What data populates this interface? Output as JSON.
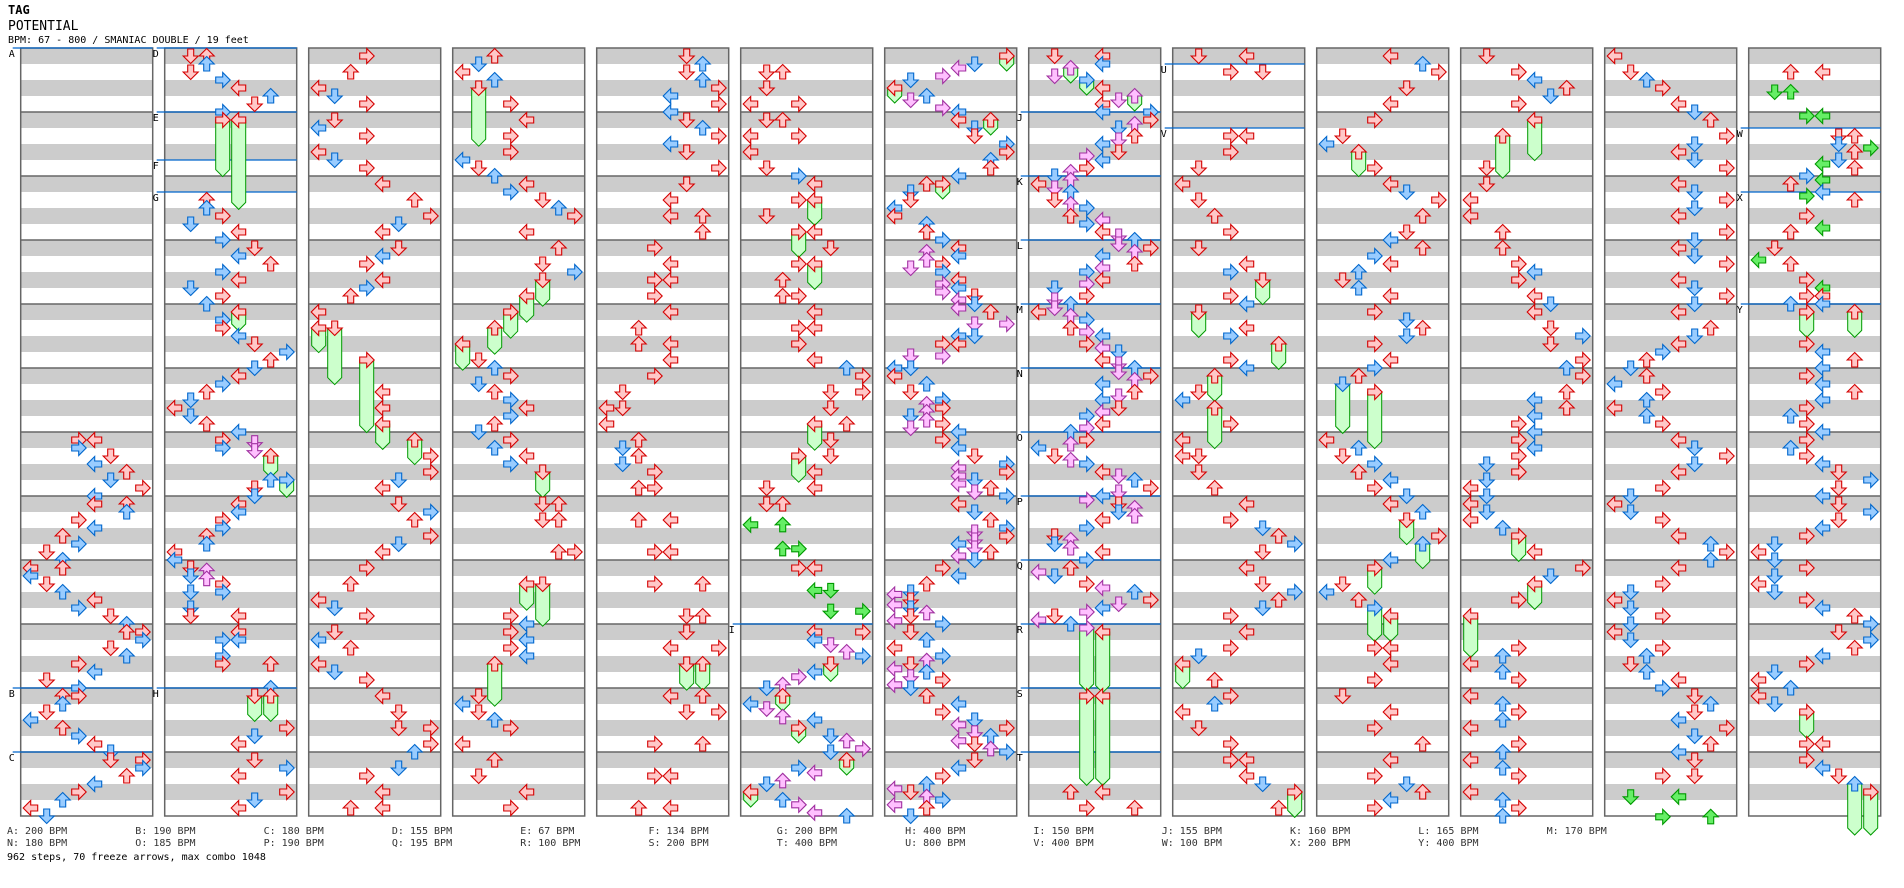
{
  "header": {
    "tag": "TAG",
    "title": "POTENTIAL",
    "info": "BPM: 67 - 800 / SMANIAC DOUBLE / 19 feet"
  },
  "colors": {
    "quarter": {
      "fill": "#ffc8c8",
      "stroke": "#d40000"
    },
    "eighth": {
      "fill": "#99ccff",
      "stroke": "#0066cc"
    },
    "twelfth": {
      "fill": "#ffc0ff",
      "stroke": "#a030a0"
    },
    "sixteenth": {
      "fill": "#66ee66",
      "stroke": "#009900"
    },
    "freeze": {
      "fill": "#ccffcc",
      "stroke": "#009900"
    },
    "stripe": "#cccccc",
    "measure_line": "#666666",
    "bpm_line": "#0066cc"
  },
  "chart_data": {
    "type": "step-chart",
    "lanes": [
      "left",
      "down",
      "up",
      "right",
      "left",
      "down",
      "up",
      "right"
    ],
    "measures_per_column": 12,
    "rows_per_measure": 8,
    "color_codes": {
      "r": "quarter",
      "b": "eighth",
      "p": "twelfth",
      "g": "sixteenth"
    },
    "columns": [
      {
        "labels": [
          [
            "A",
            0
          ],
          [
            "B",
            80
          ],
          [
            "C",
            88
          ]
        ],
        "freezes": "",
        "notes": "48:3r 48:4r 49:3b 50:5r 51:4b 52:6r 53:5b 54:7r 55:4b 56:4r 56:6r 57:6b 58:3r 59:4b 60:2r 61:3b 62:1r 63:2b 64:0r 64:2r 65:0b 66:1r 67:2b 68:4r 69:3b 70:5r 71:6b 72:6r 72:7r 73:7b 74:5r 75:6b 76:3r 77:4b 78:1r 79:3b 80:2r 80:3r 81:2b 82:1r 83:0b 84:2r 85:3b 86:4r 87:5b 88:5r 88:7r 89:7b 90:6r 91:4b 92:3r 93:2b 94:0r 95:1b"
      },
      {
        "labels": [
          [
            "D",
            0
          ],
          [
            "E",
            8
          ],
          [
            "F",
            14
          ],
          [
            "G",
            18
          ],
          [
            "H",
            80
          ]
        ],
        "freezes": "8:3:14.7 8:4:18.8 32:4:34 50:6:52.3 53:7:54.8 80:5:82.8 80:6:82.8",
        "notes": "0:1r 0:2r 1:2b 2:1r 3:3b 4:4r 5:6b 6:5r 7:3b 8:3r 8:4r 18:2r 19:2b 20:3r 21:1b 22:4r 23:3b 24:5r 25:4b 26:6r 27:3b 28:4r 29:1b 30:3r 31:2b 32:4r 33:3b 34:3r 35:4b 36:5r 37:7b 38:6r 39:5b 40:4r 41:3b 42:2r 43:1b 44:0r 45:1b 46:2r 47:4b 48:3r 49:3b 48.33:5p 49.33:5p 50:6r 53:6b 53:7b 54:5r 55:5b 56:4r 57:4b 58:3r 59:3b 60:2r 61:2b 62:0r 63:0b 64:1r 65:1b 64.33:2p 65.33:2p 66:3r 67:3b 67:1b 69:1b 70:1r 70:4r 72:4r 73:3b 73:4b 75:3b 76:3r 76:6r 79:6b 80:5r 80:6r 84:7r 85:5b 86:4r 88:5r 89:7b 90:4r 92:7r 93:5b 94:4r"
      },
      {
        "labels": [],
        "freezes": "34:0:36.7 34:1:40.7 38:3:46.7 46:4:48.8 48:6:50.7",
        "notes": "0:3r 2:2r 4:0r 5:1b 6:3r 8:1r 9:0b 10:3r 12:0r 13:1b 14:3r 16:4r 18:6r 20:7r 21:5b 22:4r 24:5r 25:4b 26:3r 28:4r 29:3b 30:2r 32:0r 34:0r 34:1r 38:3r 42:4r 44:4r 46:4r 48:6r 50:7r 52:7r 53:5b 54:4r 56:5r 57:7b 58:6r 60:7r 61:5b 62:4r 64:3r 66:2r 68:0r 69:1b 70:3r 72:1r 73:0b 74:2r 76:0r 77:1b 78:3r 80:4r 82:5r 84:5r 84:7r 86:7r 87:6b 89:5b 90:3r 92:4r 94:2r 94:4r"
      },
      {
        "labels": [],
        "freezes": "4:1:10.9 28:5:30.9 30:4:32.9 32:3:34.9 34:2:36.9 36:0:38.9 52:5:54.8 66:4:68.9 66:5:70.9 76:2:80.9",
        "notes": "0:2r 1:1b 2:0r 3:2b 4:1r 6:3r 8:4r 10:3r 12:3r 13:0b 14:1r 15:2b 16:4r 17:3b 18:5r 19:6b 20:7r 22:4r 24:6r 26:5r 27:7b 28:5r 30:4r 32:3r 34:2r 36:0r 38:1r 39:2b 40:3r 41:1b 42:2r 43:3b 44:4r 45:3b 46:2r 47:1b 48:3r 49:2b 50:4r 51:3b 52:5r 56:5r 56:6r 58:5r 58:6r 62:6r 62:7r 66:4r 66:5r 70:3r 71:4b 72:3r 73:4b 74:3r 75:4b 76:2r 80:1r 81:0b 82:1r 83:2b 84:3r 86:0r 88:2r 90:1r 92:4r 94:3r"
      },
      {
        "labels": [],
        "freezes": "76:5:78.9 76:6:78.9",
        "notes": "0:5r 1:6b 2:5r 3:6b 4:7r 5:4b 6:7r 7:4b 8:5r 9:6b 10:7r 11:4b 12:5r 14:7r 16:5r 18:4r 20:4r 20:6r 22:6r 24:3r 26:4r 28:3r 28:4r 30:3r 32:4r 34:2r 36:2r 36:4r 38:4r 40:3r 42:1r 44:1r 44:0r 46:0r 48:2r 49:1b 50:2r 51:1b 52:3r 54:2r 54:3r 58:2r 58:4r 62:3r 62:4r 66:3r 66:6r 70:5r 70:6r 72:5r 74:4r 74:7r 76:5r 76:6r 80:4r 80:6r 82:5r 82:7r 86:3r 86:6r 90:3r 90:4r 94:2r 94:4r"
      },
      {
        "labels": [
          [
            "I",
            72
          ]
        ],
        "freezes": "18:4:20.8 22:3:24.8 26:4:28.8 46:4:48.9 50:3:52.9 76:5:77.8 80:2:81.5 84:3:85.5 88:6:89.5 92:0:93.5",
        "notes": "2:1r 2:2r 4:1r 6:0r 6:3r 8:1r 8:2r 10:0r 10:3r 12:0r 14:1r 15:3b 16:4r 18:3r 18:4r 20:1r 22:3r 22:4r 24:5r 26:3r 26:4r 28:2r 30:2r 30:3r 32:4r 34:3r 34:4r 36:3r 38:4r 39:6b 40:7r 42:5r 42:7r 44:5r 46:6r 46:4r 48:5r 50:5r 50:3r 52:4r 54:4r 54:1r 56:1r 56:2r 58.6:0g 58.6:2g 61.6:2g 61.6:3g 64:3r 64:4r 66.8:4g 66.8:5g 69.4:5g 69.4:7g 72:4r 72:7r 73:4b 73.6:5p 74.5:6p 75:7b 76:5r 77:4b 77.6:3p 78.6:2p 79:1b 80:2r 81:0b 81.6:1p 82.6:2p 83:4b 84:3r 85:5b 85.6:6p 86.6:7p 87:5b 88:6r 89:3b 89.6:4p 90.6:2p 91:1b 92:0r 93:2b 93.6:3p 94.6:4p 95:6b"
      },
      {
        "labels": [],
        "freezes": "0:7:1.5 4:0:5.5 8:6:9.5 16:3:17.5",
        "notes": "0:7r 1:5b 1.5:4p 2.5:3p 3:1b 4:0r 5:2b 5.5:1p 6.5:3p 7:4b 8:4r 8:6r 9:5b 10:5r 11:7b 12:7r 13:6b 14:6r 15:4b 16:2r 16:3r 17:1b 18:1r 19:0b 20:0r 21:2b 22:2r 23:3b 24:4r 25:4b 24.5:2p 25.5:2p 26.5:1p 26:3r 27:3b 28.5:3p 29.5:3p 28:4r 29:4b 30.5:4p 31.5:4p 30:5r 31:5b 32:6r 33.5:7p 33.5:5p 35:5b 35:4b 36:3r 36:4r 37.5:1p 37.5:3p 39:1b 39:0b 40:0r 41:2b 42:1r 43:3b 44:3r 43.5:2p 44.5:2p 45:1b 46.5:1p 45.5:2p 46:3r 47:4b 48:3r 49:4b 50:5r 51:7b 52:7r 51.5:4p 52.5:4p 53.5:4p 53:5b 54.5:5p 54:6r 55:7b 56:4r 57:5b 58:6r 59:7b 60:7r 59.5:5p 60.5:5p 61.5:5p 61:4b 62.5:4p 63:5b 62:6r 64:3r 65:4b 66:2r 67.3:0p 68.6:0p 67:1b 68:1r 69:1b 70:1r 69.6:2p 70.6:0p 71:3b 72:1r 73:2b 74:0r 75:3b 76:1r 75.6:2p 76.6:0p 77.6:1p 77:2b 78.6:0p 79:1b 78:3r 80:2r 81:4b 82:3r 83.6:4p 83:5b 84.6:5p 85:6b 84:7r 85.6:4p 86:5r 86.6:6p 87:7b 88:5r 89:4b 90:3r 91:2b 91.6:0p 92:1r 92.6:2p 93:3b 93.6:0p 94:2r 95:1b"
      },
      {
        "labels": [
          [
            "J",
            8
          ],
          [
            "K",
            16
          ],
          [
            "L",
            24
          ],
          [
            "M",
            32
          ],
          [
            "N",
            40
          ],
          [
            "O",
            48
          ],
          [
            "P",
            56
          ],
          [
            "Q",
            64
          ],
          [
            "R",
            72
          ],
          [
            "S",
            80
          ],
          [
            "T",
            88
          ]
        ],
        "freezes": "1.5:2:3 3:3:4.5 5:6:6.5 71.5:3:79 72:4:79.2 80:3:90.8 80:4:90.8",
        "notes": "0:1r 0:4r 1:4b 2.5:1p 1.5:2p 3:3b 4:4r 6:4r 5.5:5p 5:6p 7:4b 7:7b 8:7r 8.5:6p 9:5b 10:6r 10.5:5p 11:4b 12:5r 12.5:3p 13:4b 14:3r 14.5:2p 15:1b 16:0r 15.5:2p 16.5:1p 17:2b 18:1r 18.5:2p 19:3b 20:2r 21:3b 20.5:4p 22:4r 22.5:5p 23.5:5p 23:6b 24:7r 24.5:6p 26:6r 25:4b 26.5:4p 28:4r 27:3b 28.5:3p 30:3r 29:1b 30.5:1p 31.5:1p 31:2b 32:0r 32.5:2p 33:3b 34:2r 34.5:3p 35:4b 36:3r 36.5:4p 37:5b 38:4r 38.5:5p 39.5:5p 39:6b 40:7r 40.5:6p 42:6r 41:4b 42.5:5p 43:4b 44:5r 44.5:4p 45:3b 46:4r 46.5:3p 47:2b 48:3r 48.5:2p 49:0b 50:1r 50.5:2p 51:3b 52:4r 52.5:5p 53:6b 54:7r 54.5:5p 55:4b 55.5:3p 56:5r 57:5b 56.5:6p 57.5:6p 58:4r 59:3b 60:1r 61:1b 60.5:2p 61.5:2p 62:4r 63:3b 64:2r 64.5:0p 65:1b 66:3r 66.5:4p 67:6b 68:7r 68.5:5p 69:4b 69.5:3p 70:1r 70.5:0p 71:2b 71.5:3p 72:4r 80:3r 80:4r 92:2r 92:4r 94:3r 94:6r"
      },
      {
        "labels": [
          [
            "U",
            2
          ],
          [
            "V",
            10
          ]
        ],
        "freezes": "28:5:30.7 32:1:34.8 36:6:38.8 40:2:42.8 44:2:48.7 76:0:78.7 92:7:94.8",
        "notes": "0:1r 0:4r 2:3r 2:5r 10:3r 10:4r 12:3r 14:1r 16:0r 18:1r 20:2r 22:3r 24:1r 26:4r 27:3b 28:5r 30:3r 31:4b 32:1r 34:4r 35:3b 36:6r 38:3r 39:4b 40:2r 42:1r 43:0b 44:2r 46:3r 48:0r 50:0r 50:1r 52:1r 54:2r 56:4r 58:3r 59:5b 60:6r 61:7b 62:5r 64:4r 66:5r 67:7b 68:6r 69:5b 70:3r 72:4r 74:3r 75:1b 76:0r 78:2r 80:3r 81:2b 82:0r 84:1r 86:3r 88:3r 88:4r 90:4r 91:5b 92:7r 94:6r"
      },
      {
        "labels": [],
        "freezes": "12:2:14.7 41:1:46.8 42:3:48.7 58:5:60.7 61:6:63.7 64:3:66.9 69:3:72.8 70:4:72.8",
        "notes": "0:4r 1:6b 2:7r 4:5r 6:4r 8:3r 10:1r 11:0b 12:2r 14:3r 16:4r 17:5b 18:7r 20:6r 22:5r 23:4b 24:6r 25:3b 26:4r 27:2b 28:1r 29:2b 30:4r 32:3r 33:5b 34:6r 35:5b 36:3r 38:4r 39:3b 40:2r 41:1b 42:3r 48:0r 49:2b 50:1r 51:3b 52:2r 53:4b 54:3r 55:5b 56:4r 57:6b 58:5r 60:7r 61:6b 63:4b 64:3r 66:1r 67:0b 68:2r 69:3b 70:4r 74:3r 74:4r 76:4r 78:3r 80:1r 82:4r 84:3r 86:6r 88:4r 90:3r 91:5b 92:6r 93:4b 94:3r"
      },
      {
        "labels": [],
        "freezes": "8:4:12.7 10:2:14.9 60:3:62.8 66:4:68.8 70:0:74.8",
        "notes": "0:1r 2:3r 3:4b 4:6r 5:5b 6:3r 8:4r 10:2r 14:1r 16:1r 18:0r 20:0r 22:2r 24:2r 26:3r 27:4b 28:3r 30:4r 31:5b 32:4r 34:5r 35:7b 36:5r 38:7r 39:6b 40:7r 42:6r 43:4b 44:6r 45:4b 46:3r 47:4b 48:3r 49:4b 50:3r 51:1b 52:3r 53:1b 54:0r 55:1b 56:0r 57:1b 58:0r 59:2b 60:3r 62:4r 64:7r 65:5b 66:4r 68:3r 70:0r 74:3r 75:2b 76:0r 77:2b 78:3r 80:0r 81:2b 82:3r 83:2b 84:0r 86:3r 87:2b 88:0r 89:2b 90:3r 92:0r 93:2b 94:3r 95:2b"
      },
      {
        "labels": [],
        "freezes": "",
        "notes": "0:0r 2:1r 3:2b 4:3r 6:4r 7:5b 8:6r 10:7r 11:5b 12:4r 13:5b 14:7r 16:4r 17:5b 18:7r 19:5b 20:4r 22:7r 23:5b 24:4r 25:5b 26:7r 28:4r 29:5b 30:7r 31:5b 32:4r 34:6r 35:5b 36:4r 37:3b 38:2r 39:1b 40:2r 41:0b 42:3r 43:2b 44:0r 45:2b 46:3r 48:4r 49:5b 50:7r 51:5b 52:4r 54:3r 55:1b 56:0r 57:1b 58:3r 60:4r 61:6b 62:7r 63:6b 64:4r 66:3r 67:1b 68:0r 69:1b 70:3r 71:1b 72:0r 73:1b 74:3r 75:2b 76:1r 77:2b 78:4r 79:3b 80:5r 81:6b 82:5r 83:4b 84:7r 85:5b 86:6r 87:4b 88:5r 90:3r 90:5r 92.6:1g 92.6:4g 95.1:3g 95.1:6g"
      },
      {
        "labels": [
          [
            "W",
            10
          ],
          [
            "X",
            18
          ],
          [
            "Y",
            32
          ]
        ],
        "freezes": "32:3:34.8 32:6:34.8 82:3:84.9 91:6:97 92:7:97",
        "notes": "2:2r 2:4r 4.5:1g 4.5:2g 7.5:3g 7.5:4g 10:5r 10:6r 11:5b 12:6r 11.5:7g 13.5:4g 13:5b 14:6r 15:3b 16:2r 15.5:4g 17:4b 17.5:3g 18:6r 20:3r 21.5:4g 22:2r 24:1r 25.5:0g 26:2r 28:3r 29:4g 30:3r 30:4r 31:2b 31:4b 32:3r 32:6r 36:3r 37:4b 38:6r 39:4b 40:3r 41:4b 42:6r 43:4b 44:3r 45:2b 46:3r 47:4b 48:3r 49:2b 50:3r 51:4b 52:5r 53:7b 54:5r 55:4b 56:5r 57:7b 58:5r 59:4b 60:3r 61:1b 62:0r 63:1b 64:3r 65:1b 66:0r 67:1b 68:3r 69:4b 70:6r 71:7b 72:5r 73:7b 74:6r 75:4b 76:3r 77:1b 78:0r 79:2b 80:0r 81:1b 82:3r 86:3r 86:4r 88:3r 89:4b 90:5r 91:6b 92:7r"
      }
    ]
  },
  "bpm_legend": [
    [
      "A: 200 BPM",
      "B: 190 BPM",
      "C: 180 BPM",
      "D: 155 BPM",
      "E: 67 BPM",
      "F: 134 BPM",
      "G: 200 BPM",
      "H: 400 BPM",
      "I: 150 BPM",
      "J: 155 BPM",
      "K: 160 BPM",
      "L: 165 BPM",
      "M: 170 BPM"
    ],
    [
      "N: 180 BPM",
      "O: 185 BPM",
      "P: 190 BPM",
      "Q: 195 BPM",
      "R: 100 BPM",
      "S: 200 BPM",
      "T: 400 BPM",
      "U: 800 BPM",
      "V: 400 BPM",
      "W: 100 BPM",
      "X: 200 BPM",
      "Y: 400 BPM"
    ]
  ],
  "summary": "962 steps, 70 freeze arrows, max combo 1048"
}
